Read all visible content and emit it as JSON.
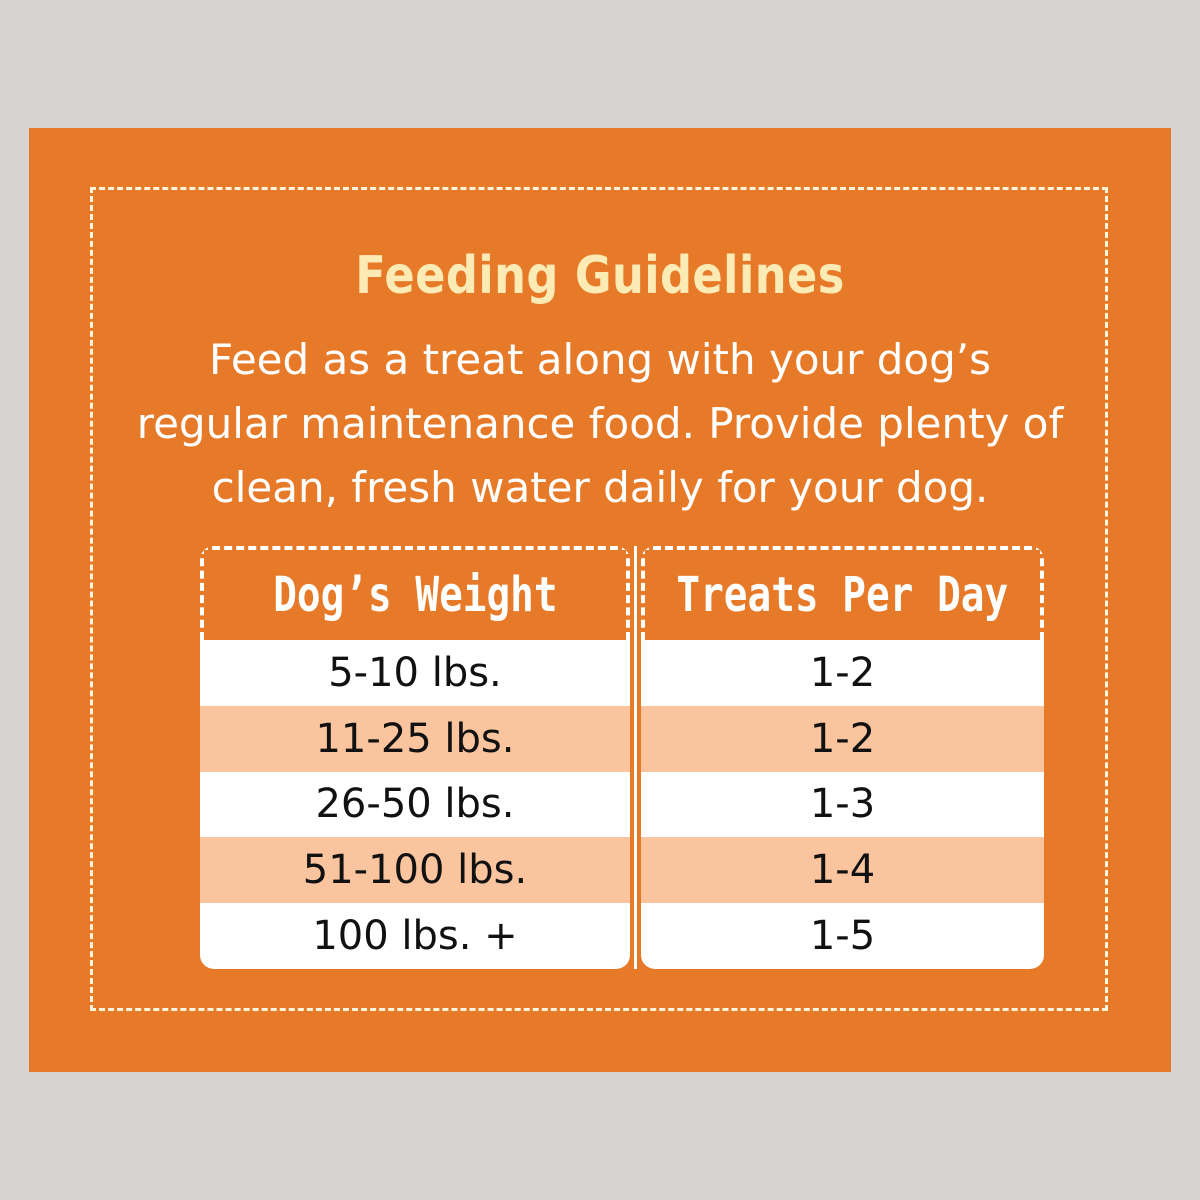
{
  "title": "Feeding Guidelines",
  "intro": "Feed as a treat along with your dog’s regular maintenance food. Provide plenty of clean, fresh water daily for your dog.",
  "table": {
    "headers": [
      "Dog’s Weight",
      "Treats Per Day"
    ],
    "rows": [
      [
        "5-10 lbs.",
        "1-2"
      ],
      [
        "11-25 lbs.",
        "1-2"
      ],
      [
        "26-50 lbs.",
        "1-3"
      ],
      [
        "51-100 lbs.",
        "1-4"
      ],
      [
        "100 lbs. +",
        "1-5"
      ]
    ]
  },
  "colors": {
    "background": "#d8d3d3",
    "panel": "#e77a29",
    "title": "#fdebb6",
    "row_alt": "#fac49e"
  }
}
